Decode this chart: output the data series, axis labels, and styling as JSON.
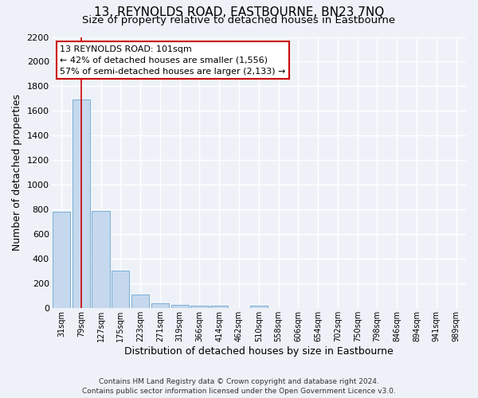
{
  "title": "13, REYNOLDS ROAD, EASTBOURNE, BN23 7NQ",
  "subtitle": "Size of property relative to detached houses in Eastbourne",
  "xlabel": "Distribution of detached houses by size in Eastbourne",
  "ylabel": "Number of detached properties",
  "bin_labels": [
    "31sqm",
    "79sqm",
    "127sqm",
    "175sqm",
    "223sqm",
    "271sqm",
    "319sqm",
    "366sqm",
    "414sqm",
    "462sqm",
    "510sqm",
    "558sqm",
    "606sqm",
    "654sqm",
    "702sqm",
    "750sqm",
    "798sqm",
    "846sqm",
    "894sqm",
    "941sqm",
    "989sqm"
  ],
  "bar_values": [
    780,
    1690,
    790,
    300,
    110,
    40,
    25,
    20,
    20,
    0,
    20,
    0,
    0,
    0,
    0,
    0,
    0,
    0,
    0,
    0,
    0
  ],
  "bar_color": "#c5d8ed",
  "bar_edgecolor": "#7aafd4",
  "annotation_title": "13 REYNOLDS ROAD: 101sqm",
  "annotation_line1": "← 42% of detached houses are smaller (1,556)",
  "annotation_line2": "57% of semi-detached houses are larger (2,133) →",
  "annotation_box_color": "#ffffff",
  "annotation_box_edgecolor": "#cc0000",
  "ylim": [
    0,
    2200
  ],
  "yticks": [
    0,
    200,
    400,
    600,
    800,
    1000,
    1200,
    1400,
    1600,
    1800,
    2000,
    2200
  ],
  "footer_line1": "Contains HM Land Registry data © Crown copyright and database right 2024.",
  "footer_line2": "Contains public sector information licensed under the Open Government Licence v3.0.",
  "background_color": "#eef2f8",
  "plot_background": "#eef2f8",
  "grid_color": "#ffffff",
  "title_fontsize": 11,
  "subtitle_fontsize": 9.5,
  "red_line_color": "#cc0000"
}
